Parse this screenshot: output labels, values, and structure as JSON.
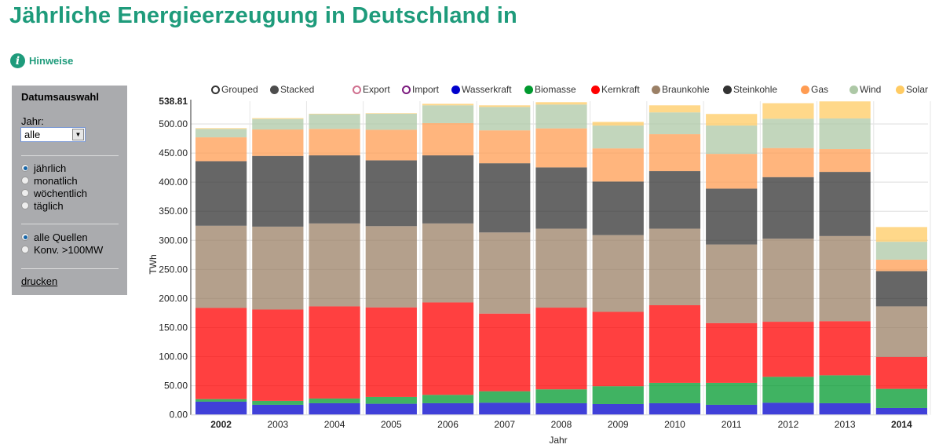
{
  "header": {
    "title": "Jährliche Energieerzeugung in Deutschland in",
    "hint_label": "Hinweise",
    "hint_icon": "info-icon"
  },
  "sidebar": {
    "title": "Datumsauswahl",
    "year_label": "Jahr:",
    "year_value": "alle",
    "period_options": [
      {
        "label": "jährlich",
        "selected": true
      },
      {
        "label": "monatlich",
        "selected": false
      },
      {
        "label": "wöchentlich",
        "selected": false
      },
      {
        "label": "täglich",
        "selected": false
      }
    ],
    "source_options": [
      {
        "label": "alle Quellen",
        "selected": true
      },
      {
        "label": "Konv. >100MW",
        "selected": false
      }
    ],
    "print_label": "drucken"
  },
  "mode_legend": [
    {
      "label": "Grouped",
      "filled": false,
      "color": "#333333"
    },
    {
      "label": "Stacked",
      "filled": true,
      "color": "#4d4d4d"
    }
  ],
  "colors": {
    "Export": "#d0708f",
    "Import": "#7b1a7e",
    "Wasserkraft": "#0000cc",
    "Biomasse": "#00992e",
    "Kernkraft": "#ff0000",
    "Braunkohle": "#9b8066",
    "Steinkohle": "#333333",
    "Gas": "#ff9c52",
    "Wind": "#adc8a6",
    "Solar": "#ffcb63"
  },
  "chart_data": {
    "type": "bar",
    "stacked": true,
    "title": "Jährliche Energieerzeugung in Deutschland in",
    "xlabel": "Jahr",
    "ylabel": "TWh",
    "ylim": [
      0,
      538.81
    ],
    "yticks": [
      "0.00",
      "50.00",
      "100.00",
      "150.00",
      "200.00",
      "250.00",
      "300.00",
      "350.00",
      "400.00",
      "450.00",
      "500.00"
    ],
    "ymax_label": "538.81",
    "grid": true,
    "legend_position": "top",
    "categories": [
      "2002",
      "2003",
      "2004",
      "2005",
      "2006",
      "2007",
      "2008",
      "2009",
      "2010",
      "2011",
      "2012",
      "2013",
      "2014"
    ],
    "bold_categories": [
      "2002",
      "2014"
    ],
    "legend": [
      {
        "name": "Export",
        "filled": false
      },
      {
        "name": "Import",
        "filled": false
      },
      {
        "name": "Wasserkraft",
        "filled": true
      },
      {
        "name": "Biomasse",
        "filled": true
      },
      {
        "name": "Kernkraft",
        "filled": true
      },
      {
        "name": "Braunkohle",
        "filled": true
      },
      {
        "name": "Steinkohle",
        "filled": true
      },
      {
        "name": "Gas",
        "filled": true
      },
      {
        "name": "Wind",
        "filled": true
      },
      {
        "name": "Solar",
        "filled": true
      }
    ],
    "series": [
      {
        "name": "Wasserkraft",
        "values": [
          22.6,
          17.2,
          19.9,
          19.0,
          19.9,
          20.8,
          19.9,
          18.5,
          19.9,
          17.2,
          20.8,
          19.9,
          11.8
        ]
      },
      {
        "name": "Biomasse",
        "values": [
          4.4,
          6.8,
          8.1,
          11.7,
          14.4,
          19.7,
          23.9,
          30.7,
          35.1,
          37.8,
          44.5,
          48.0,
          32.8
        ]
      },
      {
        "name": "Kernkraft",
        "values": [
          156.8,
          157.0,
          158.5,
          154.0,
          158.9,
          133.5,
          140.5,
          127.8,
          133.4,
          102.7,
          94.7,
          93.1,
          55.0
        ]
      },
      {
        "name": "Braunkohle",
        "values": [
          141.2,
          142.5,
          142.5,
          139.6,
          135.8,
          139.5,
          135.7,
          132.0,
          131.6,
          135.1,
          142.7,
          146.3,
          86.9
        ]
      },
      {
        "name": "Steinkohle",
        "values": [
          111.0,
          121.5,
          117.0,
          113.1,
          117.0,
          118.9,
          105.3,
          92.0,
          99.0,
          96.0,
          105.9,
          110.3,
          60.5
        ]
      },
      {
        "name": "Gas",
        "values": [
          41.0,
          45.5,
          45.5,
          52.6,
          55.4,
          56.6,
          67.1,
          57.0,
          63.4,
          59.8,
          50.0,
          39.2,
          19.7
        ]
      },
      {
        "name": "Wind",
        "values": [
          14.5,
          18.1,
          25.3,
          27.6,
          30.6,
          40.3,
          41.0,
          39.3,
          37.5,
          48.7,
          50.4,
          52.7,
          30.8
        ]
      },
      {
        "name": "Solar",
        "values": [
          1.3,
          1.4,
          0.8,
          0.9,
          2.7,
          2.7,
          4.0,
          6.3,
          12.1,
          19.9,
          26.7,
          29.3,
          25.3
        ]
      }
    ]
  }
}
